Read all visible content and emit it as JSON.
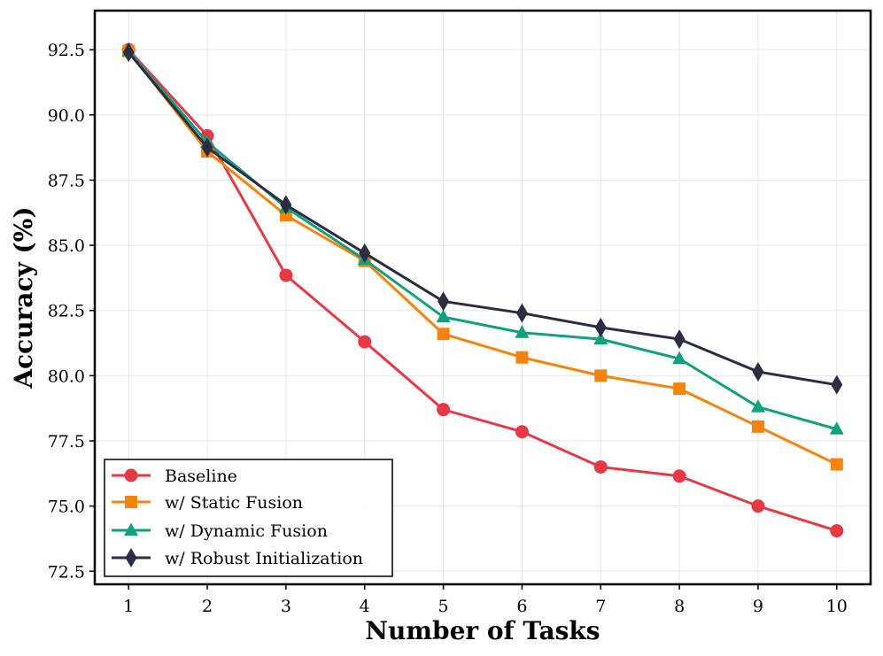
{
  "chart_data": {
    "type": "line",
    "title": "",
    "xlabel": "Number of Tasks",
    "ylabel": "Accuracy (%)",
    "x": [
      1,
      2,
      3,
      4,
      5,
      6,
      7,
      8,
      9,
      10
    ],
    "xlim": [
      0.57,
      10.43
    ],
    "ylim": [
      72.0,
      94.0
    ],
    "xticks": [
      "1",
      "2",
      "3",
      "4",
      "5",
      "6",
      "7",
      "8",
      "9",
      "10"
    ],
    "yticks": [
      72.5,
      75.0,
      77.5,
      80.0,
      82.5,
      85.0,
      87.5,
      90.0,
      92.5
    ],
    "ytick_labels": [
      "72.5",
      "75.0",
      "77.5",
      "80.0",
      "82.5",
      "85.0",
      "87.5",
      "90.0",
      "92.5"
    ],
    "grid": true,
    "legend_position": "bottom-left",
    "series": [
      {
        "name": "Baseline",
        "color": "#e63946",
        "marker": "circle",
        "values": [
          92.5,
          89.2,
          83.85,
          81.3,
          78.7,
          77.85,
          76.5,
          76.15,
          75.0,
          74.05
        ]
      },
      {
        "name": "w/ Static Fusion",
        "color": "#f4840e",
        "marker": "square",
        "values": [
          92.45,
          88.6,
          86.15,
          84.4,
          81.6,
          80.7,
          80.0,
          79.5,
          78.05,
          76.6
        ]
      },
      {
        "name": "w/ Dynamic Fusion",
        "color": "#12a07e",
        "marker": "triangle",
        "values": [
          92.45,
          88.95,
          86.45,
          84.45,
          82.25,
          81.65,
          81.4,
          80.65,
          78.8,
          77.95
        ]
      },
      {
        "name": "w/ Robust Initialization",
        "color": "#2b2d42",
        "marker": "diamond",
        "values": [
          92.4,
          88.75,
          86.55,
          84.7,
          82.85,
          82.4,
          81.85,
          81.4,
          80.15,
          79.65
        ]
      }
    ]
  }
}
